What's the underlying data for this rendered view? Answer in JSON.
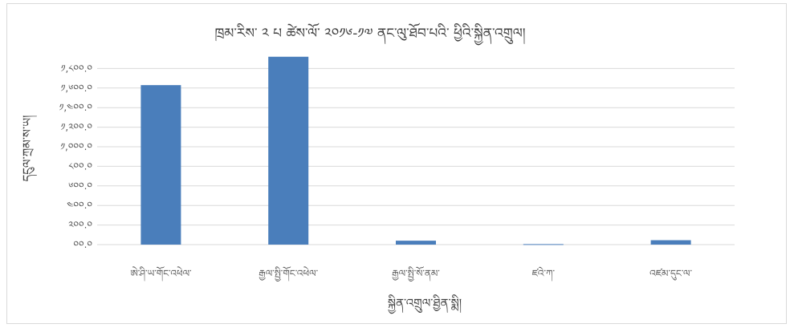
{
  "chart_data": {
    "type": "bar",
    "title": "ཁྲམ་རིས་ ༢ པ ཚེས་ལོ་ ༢༠༡༦-༡༧ ནང་ལུ་ཐོབ་པའི་ ཕྱིའི་སྐྱིན་འགྲུལ།",
    "xlabel": "སྐྱིན་འགྲུལ་ཐྱིན་སྨི།",
    "ylabel": "དངུལ་ཀྲམ་ས་ཡ།",
    "categories": [
      "ཨེ་ཤི་ཡ་གོང་འཕེལ་",
      "རྒྱལ་སྤྱི་གོང་འཕེལ་",
      "རྒྱལ་སྤྱི་སོ་ནམ་",
      "ཛའེ་ཀ་",
      "འཛམ་དུང་ལ་"
    ],
    "values": [
      1630,
      1920,
      40,
      5,
      45
    ],
    "ylim": [
      0,
      2000
    ],
    "yticks": [
      0,
      200,
      400,
      600,
      800,
      1000,
      1200,
      1400,
      1600,
      1800
    ],
    "ytick_labels": [
      "༠༠.༠",
      "༢༠༠.༠",
      "༤༠༠.༠",
      "༦༠༠.༠",
      "༨༠༠.༠",
      "༡,༠༠༠.༠",
      "༡,༢༠༠.༠",
      "༡,༤༠༠.༠",
      "༡,༦༠༠.༠",
      "༡,༨༠༠.༠"
    ],
    "grid": true,
    "colors": {
      "bar": "#4a7ebb",
      "grid": "#d9d9d9"
    }
  }
}
